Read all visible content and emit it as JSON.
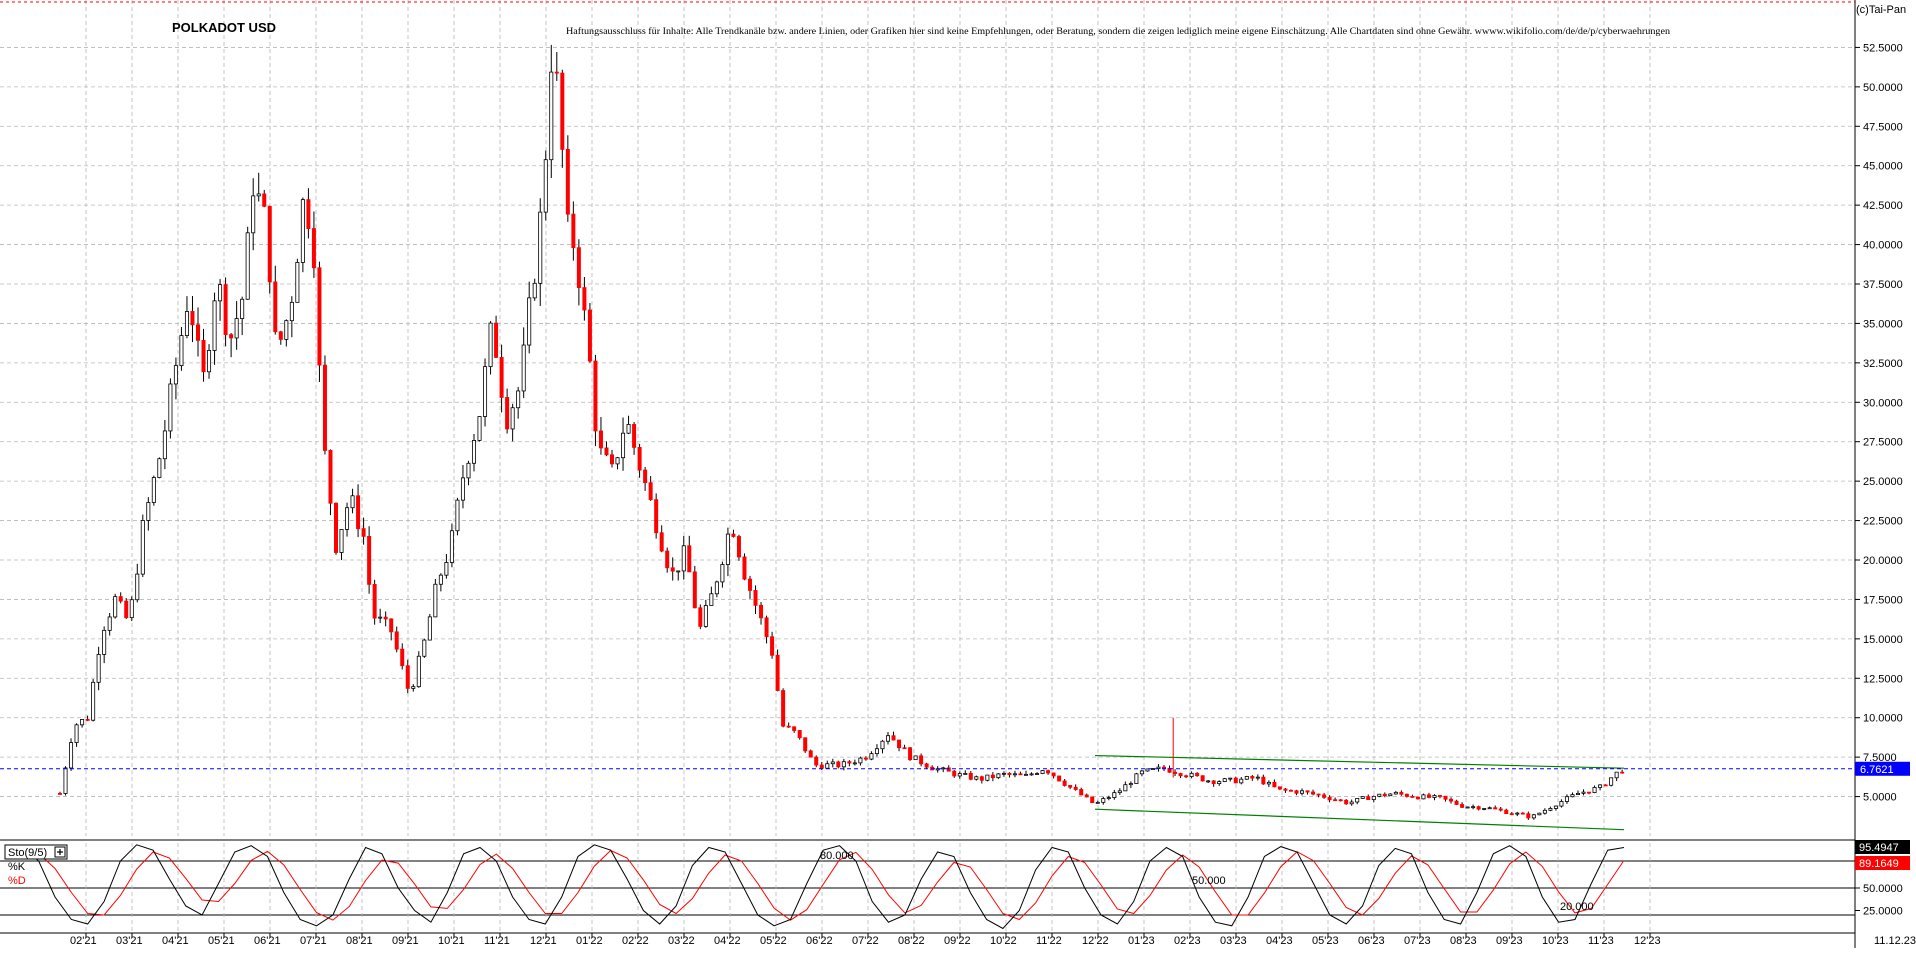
{
  "chart_data": [
    {
      "type": "candlestick",
      "title": "POLKADOT USD",
      "disclaimer": "Haftungsausschluss für Inhalte: Alle Trendkanäle bzw. andere Linien, oder Grafiken hier sind keine Empfehlungen, oder Beratung, sondern die zeigen lediglich meine eigene Einschätzung. Alle Chartdaten sind ohne Gewähr. wwww.wikifolio.com/de/de/p/cyberwaehrungen",
      "copyright": "(c)Tai-Pan",
      "ylim": [
        2.5,
        55
      ],
      "y_ticks": [
        "52.5000",
        "50.0000",
        "47.5000",
        "45.0000",
        "42.5000",
        "40.0000",
        "37.5000",
        "35.0000",
        "32.5000",
        "30.0000",
        "27.5000",
        "25.0000",
        "22.5000",
        "20.0000",
        "17.5000",
        "15.0000",
        "12.5000",
        "10.0000",
        "7.5000",
        "5.0000"
      ],
      "current_value": 6.7621,
      "current_label": "6.7621",
      "x_ticks": [
        "02'21",
        "03'21",
        "04'21",
        "05'21",
        "06'21",
        "07'21",
        "08'21",
        "09'21",
        "10'21",
        "11'21",
        "12'21",
        "01'22",
        "02'22",
        "03'22",
        "04'22",
        "05'22",
        "06'22",
        "07'22",
        "08'22",
        "09'22",
        "10'22",
        "11'22",
        "12'22",
        "01'23",
        "02'23",
        "03'23",
        "04'23",
        "05'23",
        "06'23",
        "07'23",
        "08'23",
        "09'23",
        "10'23",
        "11'23",
        "12'23"
      ],
      "last_date": "11.12.23",
      "grid": true,
      "up_color": "#ffffff",
      "down_color": "#ff0000",
      "wick_color": "#000000",
      "price_path": [
        {
          "m": 0.0,
          "v": 5.2
        },
        {
          "m": 0.3,
          "v": 9.5
        },
        {
          "m": 0.6,
          "v": 10.0
        },
        {
          "m": 0.9,
          "v": 15.5
        },
        {
          "m": 1.2,
          "v": 17.5
        },
        {
          "m": 1.5,
          "v": 16.0
        },
        {
          "m": 1.8,
          "v": 22.0
        },
        {
          "m": 2.2,
          "v": 27.0
        },
        {
          "m": 2.5,
          "v": 32.0
        },
        {
          "m": 2.8,
          "v": 37.0
        },
        {
          "m": 3.1,
          "v": 31.0
        },
        {
          "m": 3.4,
          "v": 38.0
        },
        {
          "m": 3.7,
          "v": 34.0
        },
        {
          "m": 4.0,
          "v": 37.0
        },
        {
          "m": 4.2,
          "v": 44.0
        },
        {
          "m": 4.5,
          "v": 41.0
        },
        {
          "m": 4.7,
          "v": 33.0
        },
        {
          "m": 5.0,
          "v": 36.0
        },
        {
          "m": 5.3,
          "v": 43.0
        },
        {
          "m": 5.5,
          "v": 41.0
        },
        {
          "m": 5.7,
          "v": 28.0
        },
        {
          "m": 6.0,
          "v": 21.0
        },
        {
          "m": 6.3,
          "v": 24.0
        },
        {
          "m": 6.6,
          "v": 21.5
        },
        {
          "m": 6.8,
          "v": 16.5
        },
        {
          "m": 7.2,
          "v": 15.5
        },
        {
          "m": 7.6,
          "v": 11.5
        },
        {
          "m": 7.9,
          "v": 14.5
        },
        {
          "m": 8.2,
          "v": 18.5
        },
        {
          "m": 8.5,
          "v": 21.0
        },
        {
          "m": 8.8,
          "v": 26.0
        },
        {
          "m": 9.1,
          "v": 29.0
        },
        {
          "m": 9.4,
          "v": 35.0
        },
        {
          "m": 9.7,
          "v": 29.0
        },
        {
          "m": 10.0,
          "v": 31.0
        },
        {
          "m": 10.3,
          "v": 38.0
        },
        {
          "m": 10.5,
          "v": 43.0
        },
        {
          "m": 10.7,
          "v": 53.0
        },
        {
          "m": 10.9,
          "v": 47.0
        },
        {
          "m": 11.0,
          "v": 41.0
        },
        {
          "m": 11.2,
          "v": 40.0
        },
        {
          "m": 11.5,
          "v": 33.0
        },
        {
          "m": 11.7,
          "v": 27.0
        },
        {
          "m": 12.0,
          "v": 25.5
        },
        {
          "m": 12.3,
          "v": 29.0
        },
        {
          "m": 12.6,
          "v": 26.0
        },
        {
          "m": 13.0,
          "v": 22.0
        },
        {
          "m": 13.3,
          "v": 19.0
        },
        {
          "m": 13.6,
          "v": 20.5
        },
        {
          "m": 13.9,
          "v": 15.5
        },
        {
          "m": 14.2,
          "v": 18.0
        },
        {
          "m": 14.6,
          "v": 22.5
        },
        {
          "m": 14.9,
          "v": 19.0
        },
        {
          "m": 15.2,
          "v": 16.5
        },
        {
          "m": 15.5,
          "v": 14.0
        },
        {
          "m": 15.7,
          "v": 9.5
        },
        {
          "m": 16.0,
          "v": 9.0
        },
        {
          "m": 16.4,
          "v": 7.0
        },
        {
          "m": 17.0,
          "v": 7.0
        },
        {
          "m": 17.5,
          "v": 7.5
        },
        {
          "m": 18.0,
          "v": 9.0
        },
        {
          "m": 18.5,
          "v": 7.5
        },
        {
          "m": 19.0,
          "v": 6.8
        },
        {
          "m": 19.5,
          "v": 6.4
        },
        {
          "m": 20.0,
          "v": 6.1
        },
        {
          "m": 20.5,
          "v": 6.4
        },
        {
          "m": 21.0,
          "v": 6.3
        },
        {
          "m": 21.4,
          "v": 6.8
        },
        {
          "m": 22.0,
          "v": 5.5
        },
        {
          "m": 22.5,
          "v": 4.5
        },
        {
          "m": 23.0,
          "v": 5.3
        },
        {
          "m": 23.5,
          "v": 6.5
        },
        {
          "m": 24.0,
          "v": 6.8
        },
        {
          "m": 24.5,
          "v": 6.4
        },
        {
          "m": 25.0,
          "v": 6.0
        },
        {
          "m": 25.5,
          "v": 6.0
        },
        {
          "m": 26.0,
          "v": 6.2
        },
        {
          "m": 26.5,
          "v": 5.4
        },
        {
          "m": 27.0,
          "v": 5.3
        },
        {
          "m": 27.5,
          "v": 5.0
        },
        {
          "m": 28.0,
          "v": 4.6
        },
        {
          "m": 28.5,
          "v": 5.0
        },
        {
          "m": 29.0,
          "v": 5.2
        },
        {
          "m": 29.5,
          "v": 5.0
        },
        {
          "m": 30.0,
          "v": 4.9
        },
        {
          "m": 30.5,
          "v": 4.4
        },
        {
          "m": 31.0,
          "v": 4.3
        },
        {
          "m": 31.5,
          "v": 4.0
        },
        {
          "m": 32.0,
          "v": 3.7
        },
        {
          "m": 32.5,
          "v": 4.5
        },
        {
          "m": 33.0,
          "v": 5.2
        },
        {
          "m": 33.5,
          "v": 5.6
        },
        {
          "m": 33.8,
          "v": 6.4
        },
        {
          "m": 34.0,
          "v": 6.76
        }
      ],
      "trend_lines": [
        {
          "from": [
            22.5,
            7.6
          ],
          "to": [
            34.0,
            6.8
          ],
          "color": "#008000"
        },
        {
          "from": [
            22.5,
            4.2
          ],
          "to": [
            34.0,
            2.9
          ],
          "color": "#008000"
        }
      ]
    },
    {
      "type": "line",
      "name": "Sto(9/5)",
      "series": [
        {
          "name": "%K",
          "color": "#000000",
          "last_label": "95.4947",
          "last": 95.4947
        },
        {
          "name": "%D",
          "color": "#ff0000",
          "last_label": "89.1649",
          "last": 89.1649
        }
      ],
      "ylim": [
        0,
        100
      ],
      "y_ticks": [
        "75.0000",
        "50.0000",
        "25.0000"
      ],
      "levels": [
        {
          "value": 80,
          "label": "80.000"
        },
        {
          "value": 50,
          "label": "50.000"
        },
        {
          "value": 20,
          "label": "20.000"
        }
      ],
      "k_path": [
        90,
        95,
        80,
        40,
        15,
        10,
        35,
        80,
        98,
        92,
        60,
        30,
        20,
        55,
        90,
        97,
        85,
        45,
        15,
        8,
        20,
        60,
        95,
        88,
        50,
        25,
        12,
        45,
        88,
        95,
        80,
        40,
        15,
        10,
        40,
        85,
        98,
        92,
        60,
        25,
        10,
        30,
        75,
        95,
        90,
        55,
        20,
        8,
        15,
        55,
        92,
        97,
        80,
        35,
        12,
        20,
        60,
        90,
        85,
        45,
        15,
        5,
        25,
        70,
        95,
        90,
        50,
        20,
        10,
        35,
        80,
        95,
        85,
        40,
        12,
        8,
        40,
        85,
        96,
        90,
        55,
        20,
        10,
        30,
        75,
        94,
        88,
        45,
        15,
        10,
        45,
        88,
        97,
        85,
        40,
        12,
        15,
        55,
        92,
        95
      ]
    }
  ]
}
